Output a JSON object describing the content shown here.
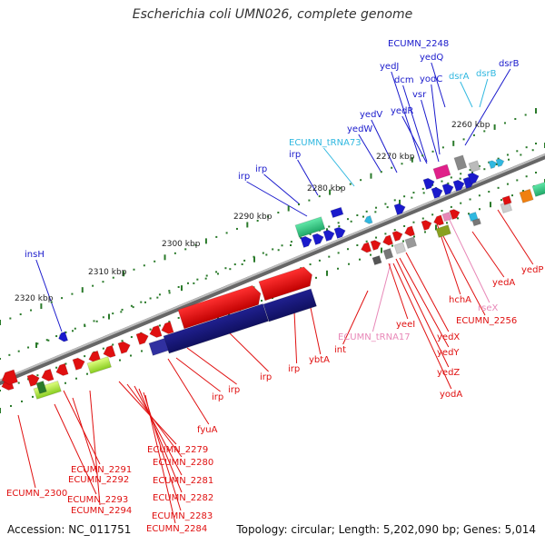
{
  "title": "Escherichia coli UMN026, complete genome",
  "footer": {
    "accession": "Accession: NC_011751",
    "summary": "Topology: circular; Length: 5,202,090 bp; Genes: 5,014"
  },
  "colors": {
    "blue": "#1a1acc",
    "red": "#e01010",
    "cyan": "#30b8e0",
    "pink": "#e888b8",
    "tickGreen": "#2a7a2a",
    "backbone": "#8a8a8a"
  },
  "scale_labels": [
    "2260 kbp",
    "2270 kbp",
    "2280 kbp",
    "2290 kbp",
    "2300 kbp",
    "2310 kbp",
    "2320 kbp"
  ],
  "gene_labels": [
    {
      "text": "ECUMN_2248",
      "color": "blue"
    },
    {
      "text": "yedQ",
      "color": "blue"
    },
    {
      "text": "dsrB",
      "color": "blue"
    },
    {
      "text": "dsrA",
      "color": "cyan"
    },
    {
      "text": "dsrB",
      "color": "cyan"
    },
    {
      "text": "yedJ",
      "color": "blue"
    },
    {
      "text": "dcm",
      "color": "blue"
    },
    {
      "text": "yodC",
      "color": "blue"
    },
    {
      "text": "vsr",
      "color": "blue"
    },
    {
      "text": "yedV",
      "color": "blue"
    },
    {
      "text": "yedR",
      "color": "blue"
    },
    {
      "text": "yedW",
      "color": "blue"
    },
    {
      "text": "ECUMN_tRNA73",
      "color": "cyan"
    },
    {
      "text": "irp",
      "color": "blue"
    },
    {
      "text": "irp",
      "color": "blue"
    },
    {
      "text": "irp",
      "color": "blue"
    },
    {
      "text": "insH",
      "color": "blue"
    },
    {
      "text": "yedP",
      "color": "red"
    },
    {
      "text": "yedA",
      "color": "red"
    },
    {
      "text": "hchA",
      "color": "red"
    },
    {
      "text": "rseX",
      "color": "pink"
    },
    {
      "text": "ECUMN_2256",
      "color": "red"
    },
    {
      "text": "ECUMN_tRNA17",
      "color": "pink"
    },
    {
      "text": "yeeI",
      "color": "red"
    },
    {
      "text": "int",
      "color": "red"
    },
    {
      "text": "yedX",
      "color": "red"
    },
    {
      "text": "yedY",
      "color": "red"
    },
    {
      "text": "yedZ",
      "color": "red"
    },
    {
      "text": "yodA",
      "color": "red"
    },
    {
      "text": "ybtA",
      "color": "red"
    },
    {
      "text": "irp",
      "color": "red"
    },
    {
      "text": "irp",
      "color": "red"
    },
    {
      "text": "irp",
      "color": "red"
    },
    {
      "text": "irp",
      "color": "red"
    },
    {
      "text": "fyuA",
      "color": "red"
    },
    {
      "text": "ECUMN_2279",
      "color": "red"
    },
    {
      "text": "ECUMN_2280",
      "color": "red"
    },
    {
      "text": "ECUMN_2281",
      "color": "red"
    },
    {
      "text": "ECUMN_2282",
      "color": "red"
    },
    {
      "text": "ECUMN_2283",
      "color": "red"
    },
    {
      "text": "ECUMN_2284",
      "color": "red"
    },
    {
      "text": "ECUMN_2291",
      "color": "red"
    },
    {
      "text": "ECUMN_2292",
      "color": "red"
    },
    {
      "text": "ECUMN_2293",
      "color": "red"
    },
    {
      "text": "ECUMN_2294",
      "color": "red"
    },
    {
      "text": "ECUMN_2300",
      "color": "red"
    }
  ]
}
